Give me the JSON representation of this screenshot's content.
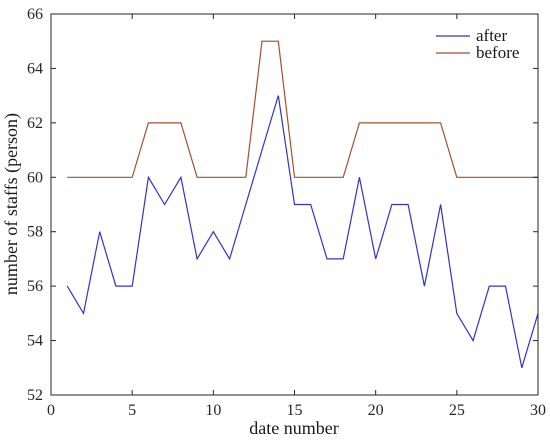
{
  "chart_data": {
    "type": "line",
    "title": "",
    "xlabel": "date number",
    "ylabel": "number of staffs (person)",
    "xlim": [
      0,
      30
    ],
    "ylim": [
      52,
      66
    ],
    "xticks": [
      0,
      5,
      10,
      15,
      20,
      25,
      30
    ],
    "yticks": [
      52,
      54,
      56,
      58,
      60,
      62,
      64,
      66
    ],
    "grid": false,
    "legend_position": "top-right",
    "series": [
      {
        "name": "after",
        "color": "#3333cc",
        "x": [
          1,
          2,
          3,
          4,
          5,
          6,
          7,
          8,
          9,
          10,
          11,
          12,
          13,
          14,
          15,
          16,
          17,
          18,
          19,
          20,
          21,
          22,
          23,
          24,
          25,
          26,
          27,
          28,
          29,
          30
        ],
        "values": [
          56,
          55,
          58,
          56,
          56,
          60,
          59,
          60,
          57,
          58,
          57,
          59,
          61,
          63,
          59,
          59,
          57,
          57,
          60,
          57,
          59,
          59,
          56,
          59,
          55,
          54,
          56,
          56,
          53,
          55
        ]
      },
      {
        "name": "before",
        "color": "#a0522d",
        "x": [
          1,
          2,
          3,
          4,
          5,
          6,
          7,
          8,
          9,
          10,
          11,
          12,
          13,
          14,
          15,
          16,
          17,
          18,
          19,
          20,
          21,
          22,
          23,
          24,
          25,
          26,
          27,
          28,
          29,
          30
        ],
        "values": [
          60,
          60,
          60,
          60,
          60,
          62,
          62,
          62,
          60,
          60,
          60,
          60,
          65,
          65,
          60,
          60,
          60,
          60,
          62,
          62,
          62,
          62,
          62,
          62,
          60,
          60,
          60,
          60,
          60,
          60
        ]
      }
    ]
  }
}
